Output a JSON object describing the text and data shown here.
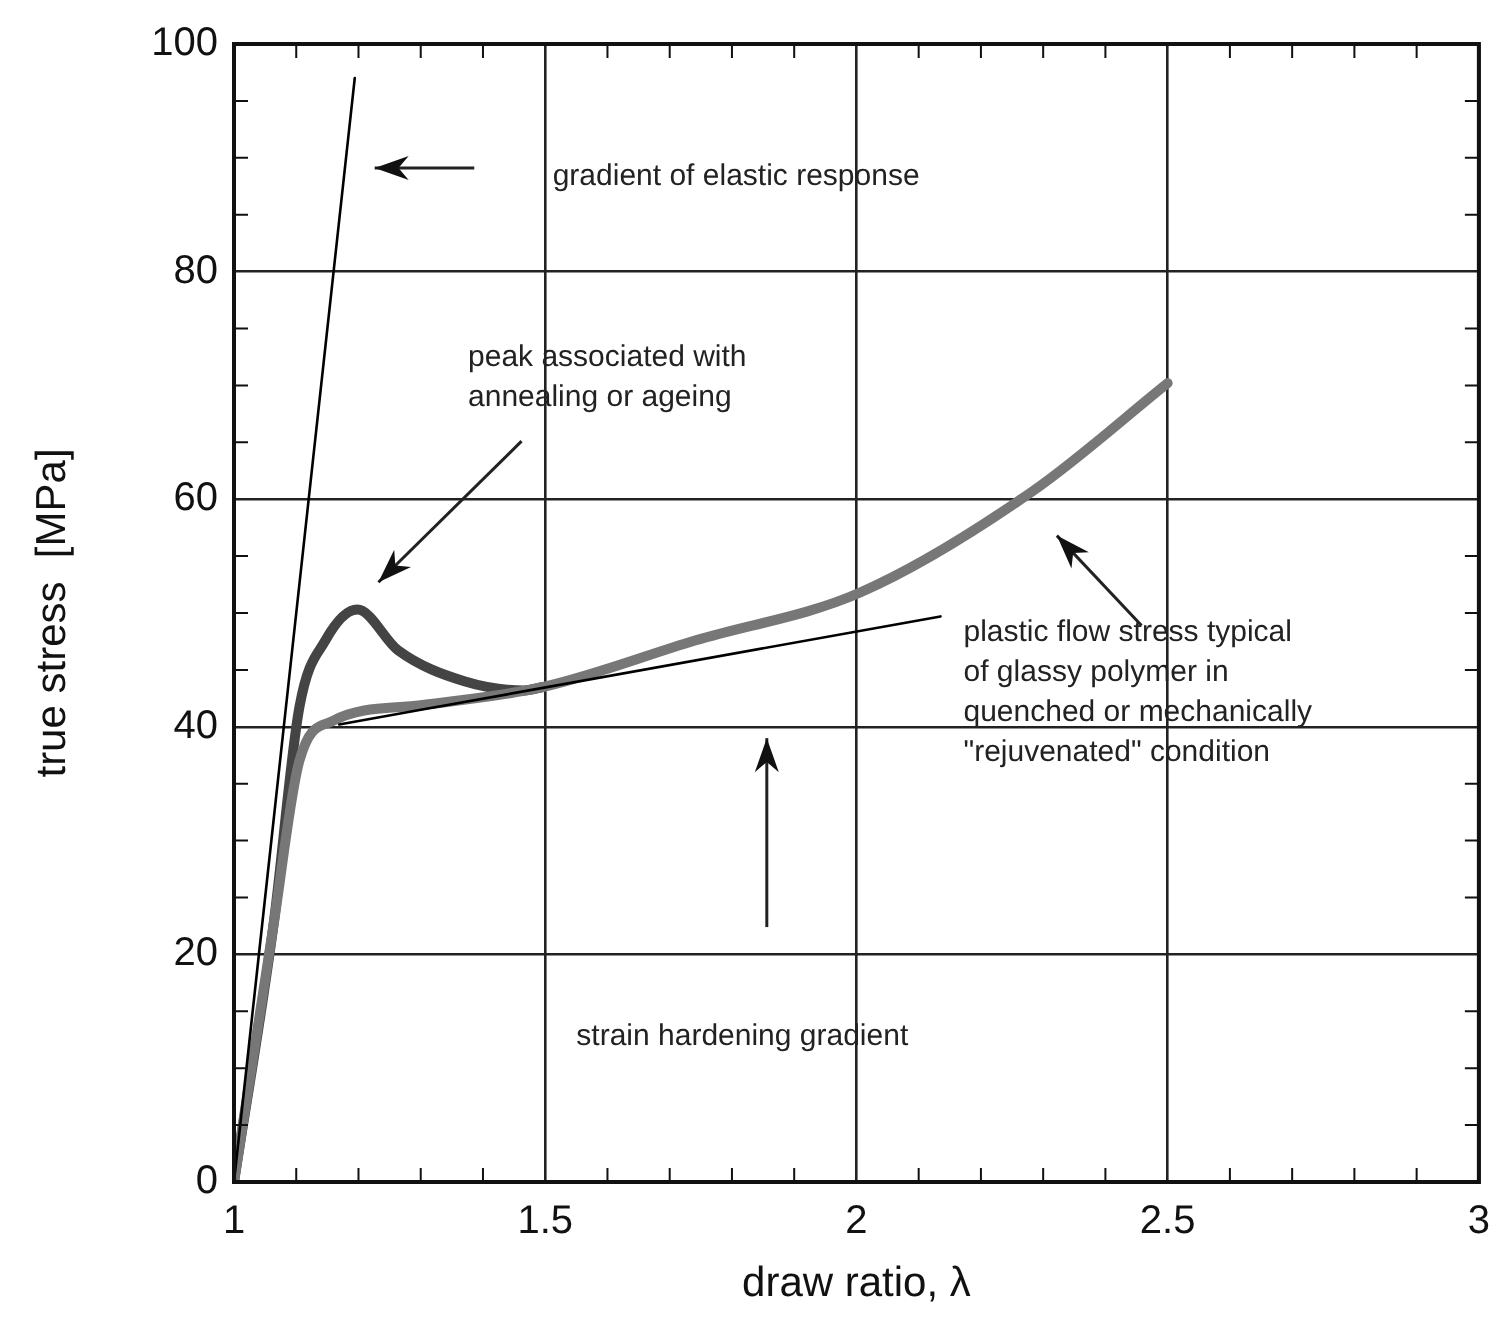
{
  "chart_data": {
    "type": "line",
    "xlabel": "draw ratio, λ",
    "ylabel": "true stress  [MPa]",
    "xlim": [
      1,
      3
    ],
    "ylim": [
      0,
      100
    ],
    "xticks": [
      1,
      {
        "value": 1.1,
        "label": null
      },
      {
        "value": 1.2,
        "label": null
      },
      {
        "value": 1.3,
        "label": null
      },
      {
        "value": 1.4,
        "label": null
      },
      1.5,
      {
        "value": 1.6,
        "label": null
      },
      {
        "value": 1.7,
        "label": null
      },
      {
        "value": 1.8,
        "label": null
      },
      {
        "value": 1.9,
        "label": null
      },
      2,
      {
        "value": 2.1,
        "label": null
      },
      {
        "value": 2.2,
        "label": null
      },
      {
        "value": 2.3,
        "label": null
      },
      {
        "value": 2.4,
        "label": null
      },
      2.5,
      {
        "value": 2.6,
        "label": null
      },
      {
        "value": 2.7,
        "label": null
      },
      {
        "value": 2.8,
        "label": null
      },
      {
        "value": 2.9,
        "label": null
      },
      3
    ],
    "yticks": [
      0,
      {
        "value": 5,
        "label": null
      },
      {
        "value": 10,
        "label": null
      },
      {
        "value": 15,
        "label": null
      },
      20,
      {
        "value": 25,
        "label": null
      },
      {
        "value": 30,
        "label": null
      },
      {
        "value": 35,
        "label": null
      },
      40,
      {
        "value": 45,
        "label": null
      },
      {
        "value": 50,
        "label": null
      },
      {
        "value": 55,
        "label": null
      },
      60,
      {
        "value": 65,
        "label": null
      },
      {
        "value": 70,
        "label": null
      },
      {
        "value": 75,
        "label": null
      },
      80,
      {
        "value": 85,
        "label": null
      },
      {
        "value": 90,
        "label": null
      },
      {
        "value": 95,
        "label": null
      },
      100
    ],
    "grid": true,
    "legend": false,
    "marker": "none",
    "line_style": "solid",
    "series": [
      {
        "type": "line",
        "color": "#000000",
        "x": [
          1,
          1.194
        ],
        "values": [
          0,
          97
        ]
      },
      {
        "type": "line",
        "color": "#000000",
        "x": [
          1.169,
          2.135
        ],
        "values": [
          40.2,
          49.7
        ]
      },
      {
        "type": "line",
        "color": "#777777",
        "x": [
          1,
          1.063,
          1.105,
          1.158,
          1.3,
          1.497,
          1.742,
          2.006,
          2.283,
          2.5
        ],
        "values": [
          0,
          22.4,
          37,
          40.5,
          41.9,
          43.5,
          47.6,
          51.8,
          60.7,
          70.2
        ]
      },
      {
        "type": "line",
        "color": "#444444",
        "x": [
          1,
          1.063,
          1.105,
          1.147,
          1.198,
          1.264,
          1.37,
          1.466,
          1.497
        ],
        "values": [
          0,
          22.4,
          41.7,
          47.6,
          50.3,
          46.7,
          44,
          43.2,
          43.5
        ]
      }
    ],
    "annotations": [
      "gradient of elastic response",
      "peak associated with\nannealing or ageing",
      "strain hardening gradient",
      "plastic flow stress typical\nof glassy polymer in\nquenched or mechanically\n\"rejuvenated\" condition"
    ]
  }
}
